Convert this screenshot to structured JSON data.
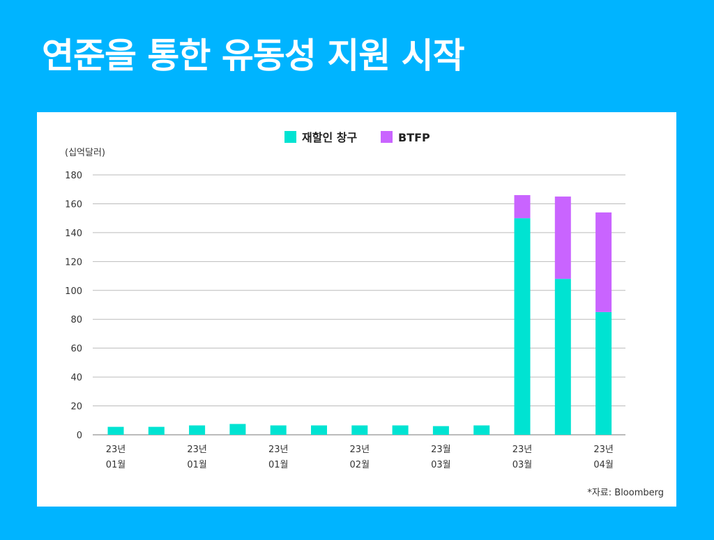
{
  "title": "연준을 통한 유동성 지원 시작",
  "source": "*자료: Bloomberg",
  "colors": {
    "background": "#00b4ff",
    "discount_window": "#00e3d2",
    "btfp": "#c964ff"
  },
  "chart_data": {
    "type": "bar",
    "stacked": true,
    "ylabel": "(십억달러)",
    "ylim": [
      0,
      180
    ],
    "yticks": [
      0,
      20,
      40,
      60,
      80,
      100,
      120,
      140,
      160,
      180
    ],
    "grid": true,
    "legend_position": "top-center",
    "x_tick_labels": [
      {
        "index": 0,
        "line1": "23년",
        "line2": "01월"
      },
      {
        "index": 2,
        "line1": "23년",
        "line2": "01월"
      },
      {
        "index": 4,
        "line1": "23년",
        "line2": "01월"
      },
      {
        "index": 6,
        "line1": "23년",
        "line2": "02월"
      },
      {
        "index": 8,
        "line1": "23월",
        "line2": "03월"
      },
      {
        "index": 10,
        "line1": "23년",
        "line2": "03월"
      },
      {
        "index": 12,
        "line1": "23년",
        "line2": "04월"
      }
    ],
    "series": [
      {
        "name": "재할인 창구",
        "color": "#00e3d2",
        "values": [
          5.5,
          5.5,
          6.5,
          7.5,
          6.5,
          6.5,
          6.5,
          6.5,
          6,
          6.5,
          150,
          108,
          85
        ]
      },
      {
        "name": "BTFP",
        "color": "#c964ff",
        "values": [
          0,
          0,
          0,
          0,
          0,
          0,
          0,
          0,
          0,
          0,
          16,
          57,
          69
        ]
      }
    ]
  }
}
